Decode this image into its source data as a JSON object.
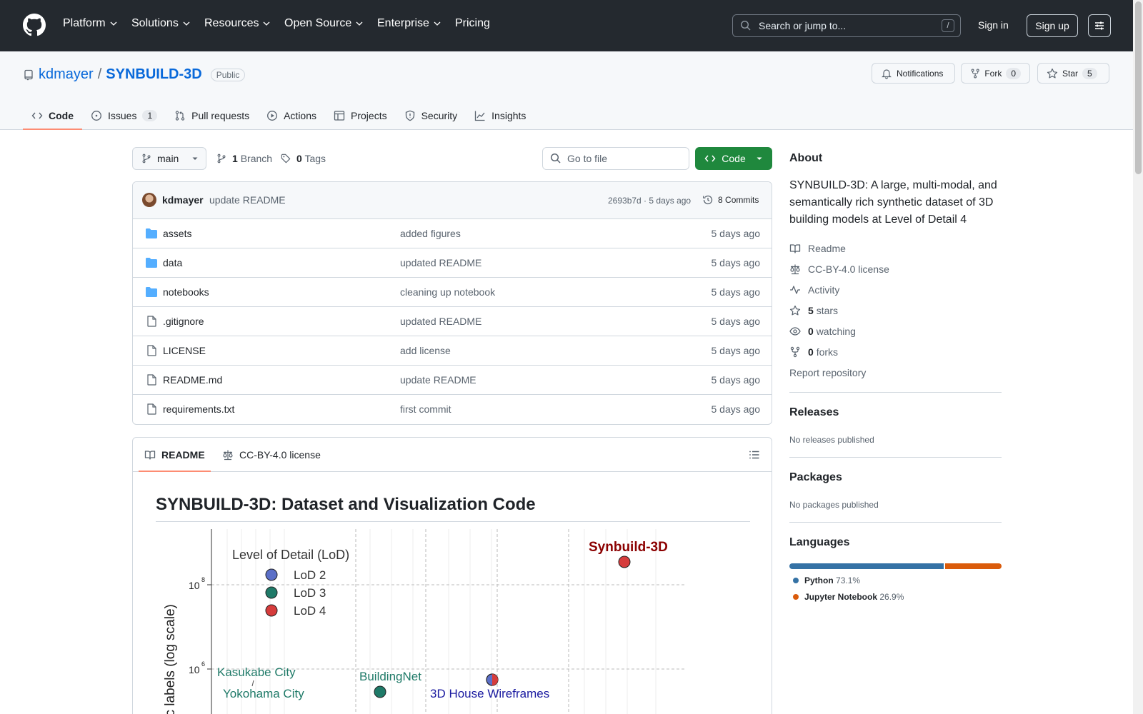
{
  "header": {
    "nav": [
      "Platform",
      "Solutions",
      "Resources",
      "Open Source",
      "Enterprise",
      "Pricing"
    ],
    "search_placeholder": "Search or jump to...",
    "search_key": "/",
    "sign_in": "Sign in",
    "sign_up": "Sign up"
  },
  "repo": {
    "owner": "kdmayer",
    "separator": "/",
    "name": "SYNBUILD-3D",
    "visibility": "Public",
    "notifications": "Notifications",
    "fork_label": "Fork",
    "fork_count": "0",
    "star_label": "Star",
    "star_count": "5"
  },
  "tabs": [
    {
      "label": "Code",
      "icon": "code-icon",
      "active": true
    },
    {
      "label": "Issues",
      "icon": "issue-icon",
      "count": "1"
    },
    {
      "label": "Pull requests",
      "icon": "pull-request-icon"
    },
    {
      "label": "Actions",
      "icon": "play-icon"
    },
    {
      "label": "Projects",
      "icon": "table-icon"
    },
    {
      "label": "Security",
      "icon": "shield-icon"
    },
    {
      "label": "Insights",
      "icon": "graph-icon"
    }
  ],
  "toolbar": {
    "branch": "main",
    "branch_count": "1",
    "branch_label": "Branch",
    "tag_count": "0",
    "tag_label": "Tags",
    "go_to_file": "Go to file",
    "code_button": "Code"
  },
  "commit": {
    "author": "kdmayer",
    "message": "update README",
    "hash_time": "2693b7d · 5 days ago",
    "commits_count": "8",
    "commits_label": "Commits"
  },
  "files": [
    {
      "name": "assets",
      "type": "folder",
      "message": "added figures",
      "date": "5 days ago"
    },
    {
      "name": "data",
      "type": "folder",
      "message": "updated README",
      "date": "5 days ago"
    },
    {
      "name": "notebooks",
      "type": "folder",
      "message": "cleaning up notebook",
      "date": "5 days ago"
    },
    {
      "name": ".gitignore",
      "type": "file",
      "message": "updated README",
      "date": "5 days ago"
    },
    {
      "name": "LICENSE",
      "type": "file",
      "message": "add license",
      "date": "5 days ago"
    },
    {
      "name": "README.md",
      "type": "file",
      "message": "update README",
      "date": "5 days ago"
    },
    {
      "name": "requirements.txt",
      "type": "file",
      "message": "first commit",
      "date": "5 days ago"
    }
  ],
  "readme": {
    "tab_readme": "README",
    "tab_license": "CC-BY-4.0 license",
    "title": "SYNBUILD-3D: Dataset and Visualization Code"
  },
  "figure": {
    "legend_title": "Level of Detail (LoD)",
    "legend": [
      {
        "label": "LoD 2",
        "color": "#5b6fc7"
      },
      {
        "label": "LoD 3",
        "color": "#1f7a68"
      },
      {
        "label": "LoD 4",
        "color": "#d63c3c"
      }
    ],
    "ylabel": "tic labels (log scale)",
    "ytick_1": "10",
    "ytick_1_exp": "8",
    "ytick_2": "10",
    "ytick_2_exp": "6",
    "points": [
      {
        "label": "Synbuild-3D",
        "color": "#8b0000"
      },
      {
        "label": "BuildingNet",
        "color": "#1f7a68"
      },
      {
        "label": "3D House Wireframes",
        "color": "#1a1aa0"
      },
      {
        "label": "Kasukabe City",
        "color": "#1f7a68"
      },
      {
        "label": "Yokohama City",
        "color": "#1f7a68"
      }
    ]
  },
  "about": {
    "title": "About",
    "description": "SYNBUILD-3D: A large, multi-modal, and semantically rich synthetic dataset of 3D building models at Level of Detail 4",
    "readme": "Readme",
    "license": "CC-BY-4.0 license",
    "activity": "Activity",
    "stars_count": "5",
    "stars_label": "stars",
    "watching_count": "0",
    "watching_label": "watching",
    "forks_count": "0",
    "forks_label": "forks",
    "report": "Report repository"
  },
  "releases": {
    "title": "Releases",
    "empty": "No releases published"
  },
  "packages": {
    "title": "Packages",
    "empty": "No packages published"
  },
  "languages": {
    "title": "Languages",
    "items": [
      {
        "name": "Python",
        "percent": "73.1%",
        "value": 73.1,
        "color": "#3572A5"
      },
      {
        "name": "Jupyter Notebook",
        "percent": "26.9%",
        "value": 26.9,
        "color": "#DA5B0B"
      }
    ]
  }
}
